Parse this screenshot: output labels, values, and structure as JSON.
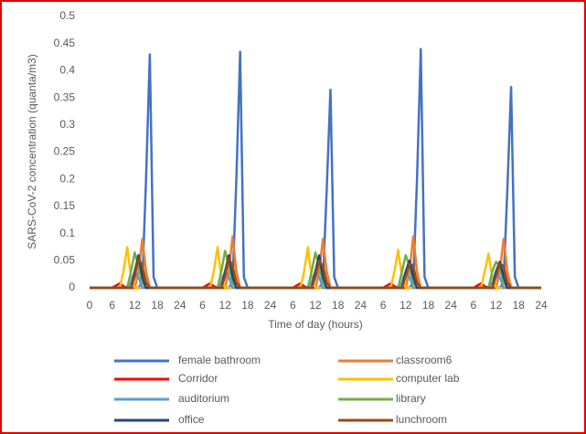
{
  "chart_data": {
    "type": "line",
    "x_label": "Time of day (hours)",
    "y_label": "SARS-CoV-2 concentration (quanta/m3)",
    "x": [
      0,
      6,
      8,
      9,
      10,
      11,
      12,
      13,
      14,
      15,
      16,
      17,
      18,
      30,
      32,
      33,
      34,
      35,
      36,
      37,
      38,
      39,
      40,
      41,
      42,
      54,
      56,
      57,
      58,
      59,
      60,
      61,
      62,
      63,
      64,
      65,
      66,
      78,
      80,
      81,
      82,
      83,
      84,
      85,
      86,
      87,
      88,
      89,
      90,
      102,
      104,
      105,
      106,
      107,
      108,
      109,
      110,
      111,
      112,
      113,
      114,
      120
    ],
    "xlim": [
      0,
      120
    ],
    "xticks": [
      0,
      6,
      12,
      18,
      24,
      {
        "value": 30,
        "label": "6"
      },
      {
        "value": 36,
        "label": "12"
      },
      {
        "value": 42,
        "label": "18"
      },
      {
        "value": 48,
        "label": "24"
      },
      {
        "value": 54,
        "label": "6"
      },
      {
        "value": 60,
        "label": "12"
      },
      {
        "value": 66,
        "label": "18"
      },
      {
        "value": 72,
        "label": "24"
      },
      {
        "value": 78,
        "label": "6"
      },
      {
        "value": 84,
        "label": "12"
      },
      {
        "value": 90,
        "label": "18"
      },
      {
        "value": 96,
        "label": "24"
      },
      {
        "value": 102,
        "label": "6"
      },
      {
        "value": 108,
        "label": "12"
      },
      {
        "value": 114,
        "label": "18"
      },
      {
        "value": 120,
        "label": "24"
      }
    ],
    "ylim": [
      0,
      0.5
    ],
    "yticks": [
      0,
      0.05,
      0.1,
      0.15,
      0.2,
      0.25,
      0.3,
      0.35,
      0.4,
      0.45,
      0.5
    ],
    "legend": "bottom",
    "series": [
      {
        "name": "female bathroom",
        "color": "#4472c4",
        "values": [
          0,
          0,
          0,
          0,
          0,
          0,
          0,
          0,
          0.01,
          0.2,
          0.43,
          0.02,
          0,
          0,
          0,
          0,
          0,
          0,
          0,
          0,
          0.01,
          0.2,
          0.435,
          0.02,
          0,
          0,
          0,
          0,
          0,
          0,
          0,
          0,
          0.01,
          0.18,
          0.365,
          0.02,
          0,
          0,
          0,
          0,
          0,
          0,
          0,
          0,
          0.01,
          0.2,
          0.44,
          0.02,
          0,
          0,
          0,
          0,
          0,
          0,
          0,
          0,
          0.01,
          0.18,
          0.37,
          0.02,
          0,
          0
        ]
      },
      {
        "name": "classroom6",
        "color": "#ed7d31",
        "values": [
          0,
          0,
          0,
          0,
          0,
          0,
          0,
          0.03,
          0.09,
          0.03,
          0,
          0,
          0,
          0,
          0,
          0,
          0,
          0,
          0,
          0.03,
          0.095,
          0.03,
          0,
          0,
          0,
          0,
          0,
          0,
          0,
          0,
          0,
          0.03,
          0.09,
          0.03,
          0,
          0,
          0,
          0,
          0,
          0,
          0,
          0,
          0,
          0.03,
          0.095,
          0.03,
          0,
          0,
          0,
          0,
          0,
          0,
          0,
          0,
          0,
          0.03,
          0.09,
          0.03,
          0,
          0,
          0,
          0
        ]
      },
      {
        "name": "Corridor",
        "color": "#ff0000",
        "values": [
          0,
          0,
          0.008,
          0.003,
          0,
          0,
          0,
          0,
          0,
          0,
          0,
          0,
          0,
          0,
          0.008,
          0.003,
          0,
          0,
          0,
          0,
          0,
          0,
          0,
          0,
          0,
          0,
          0.008,
          0.003,
          0,
          0,
          0,
          0,
          0,
          0,
          0,
          0,
          0,
          0,
          0.008,
          0.003,
          0,
          0,
          0,
          0,
          0,
          0,
          0,
          0,
          0,
          0,
          0.008,
          0.003,
          0,
          0,
          0,
          0,
          0,
          0,
          0,
          0,
          0,
          0
        ]
      },
      {
        "name": "computer lab",
        "color": "#ffc000",
        "values": [
          0,
          0,
          0,
          0.03,
          0.075,
          0.02,
          0,
          0,
          0,
          0,
          0,
          0,
          0,
          0,
          0,
          0.03,
          0.075,
          0.02,
          0,
          0,
          0,
          0,
          0,
          0,
          0,
          0,
          0,
          0.03,
          0.075,
          0.02,
          0,
          0,
          0,
          0,
          0,
          0,
          0,
          0,
          0,
          0.03,
          0.07,
          0.02,
          0,
          0,
          0,
          0,
          0,
          0,
          0,
          0,
          0,
          0.03,
          0.063,
          0.02,
          0,
          0,
          0,
          0,
          0,
          0,
          0,
          0
        ]
      },
      {
        "name": "auditorium",
        "color": "#5b9bd5",
        "values": [
          0,
          0,
          0,
          0,
          0,
          0.01,
          0.03,
          0.02,
          0,
          0,
          0,
          0,
          0,
          0,
          0,
          0,
          0,
          0.01,
          0.03,
          0.02,
          0,
          0,
          0,
          0,
          0,
          0,
          0,
          0,
          0,
          0.01,
          0.03,
          0.02,
          0,
          0,
          0,
          0,
          0,
          0,
          0,
          0,
          0,
          0.01,
          0.03,
          0.02,
          0,
          0,
          0,
          0,
          0,
          0,
          0,
          0,
          0,
          0.01,
          0.03,
          0.02,
          0,
          0,
          0,
          0,
          0,
          0
        ]
      },
      {
        "name": "library",
        "color": "#70ad47",
        "values": [
          0,
          0,
          0,
          0,
          0,
          0.03,
          0.065,
          0.04,
          0.01,
          0,
          0,
          0,
          0,
          0,
          0,
          0,
          0,
          0.03,
          0.068,
          0.04,
          0.01,
          0,
          0,
          0,
          0,
          0,
          0,
          0,
          0,
          0.03,
          0.065,
          0.04,
          0.01,
          0,
          0,
          0,
          0,
          0,
          0,
          0,
          0,
          0.03,
          0.06,
          0.04,
          0.01,
          0,
          0,
          0,
          0,
          0,
          0,
          0,
          0,
          0.03,
          0.048,
          0.04,
          0.01,
          0,
          0,
          0,
          0,
          0
        ]
      },
      {
        "name": "office",
        "color": "#264478",
        "values": [
          0,
          0,
          0,
          0,
          0,
          0,
          0.03,
          0.06,
          0.02,
          0,
          0,
          0,
          0,
          0,
          0,
          0,
          0,
          0,
          0.03,
          0.06,
          0.02,
          0,
          0,
          0,
          0,
          0,
          0,
          0,
          0,
          0,
          0.03,
          0.06,
          0.02,
          0,
          0,
          0,
          0,
          0,
          0,
          0,
          0,
          0,
          0.03,
          0.05,
          0.02,
          0,
          0,
          0,
          0,
          0,
          0,
          0,
          0,
          0,
          0.03,
          0.048,
          0.02,
          0,
          0,
          0,
          0,
          0
        ]
      },
      {
        "name": "lunchroom",
        "color": "#9e480e",
        "values": [
          0,
          0,
          0,
          0,
          0,
          0,
          0.02,
          0.055,
          0.04,
          0.01,
          0,
          0,
          0,
          0,
          0,
          0,
          0,
          0,
          0.02,
          0.055,
          0.04,
          0.01,
          0,
          0,
          0,
          0,
          0,
          0,
          0,
          0,
          0.02,
          0.05,
          0.04,
          0.01,
          0,
          0,
          0,
          0,
          0,
          0,
          0,
          0,
          0.02,
          0.045,
          0.04,
          0.01,
          0,
          0,
          0,
          0,
          0,
          0,
          0,
          0,
          0.02,
          0.045,
          0.04,
          0.01,
          0,
          0,
          0,
          0
        ]
      }
    ]
  }
}
